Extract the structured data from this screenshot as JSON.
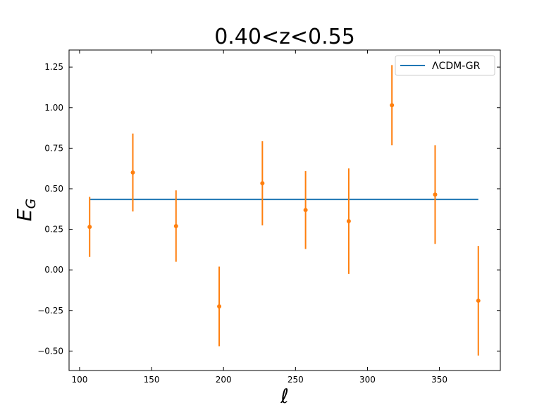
{
  "chart_data": {
    "type": "errorbar",
    "title": "0.40<z<0.55",
    "xlabel": "ℓ",
    "ylabel": "E",
    "ylabel_subscript": "G",
    "xlim": [
      92.7,
      392.3
    ],
    "ylim": [
      -0.62,
      1.355
    ],
    "xticks": [
      100,
      150,
      200,
      250,
      300,
      350
    ],
    "yticks": [
      {
        "value": -0.5,
        "label": "−0.50"
      },
      {
        "value": -0.25,
        "label": "−0.25"
      },
      {
        "value": 0,
        "label": "0.00"
      },
      {
        "value": 0.25,
        "label": "0.25"
      },
      {
        "value": 0.5,
        "label": "0.50"
      },
      {
        "value": 0.75,
        "label": "0.75"
      },
      {
        "value": 1,
        "label": "1.00"
      },
      {
        "value": 1.25,
        "label": "1.25"
      }
    ],
    "legend": "upper right",
    "series": [
      {
        "name": "ΛCDM-GR",
        "kind": "line",
        "color": "#1f77b4",
        "x": [
          107,
          377
        ],
        "values": [
          0.434,
          0.434
        ]
      },
      {
        "kind": "errorbar",
        "color": "#ff7f0e",
        "x": [
          107,
          137,
          167,
          197,
          227,
          257,
          287,
          317,
          347,
          377
        ],
        "values": [
          0.265,
          0.6,
          0.27,
          -0.225,
          0.534,
          0.369,
          0.3,
          1.015,
          0.464,
          -0.19
        ],
        "errors": [
          0.185,
          0.24,
          0.22,
          0.245,
          0.26,
          0.24,
          0.325,
          0.247,
          0.304,
          0.338
        ]
      }
    ]
  }
}
